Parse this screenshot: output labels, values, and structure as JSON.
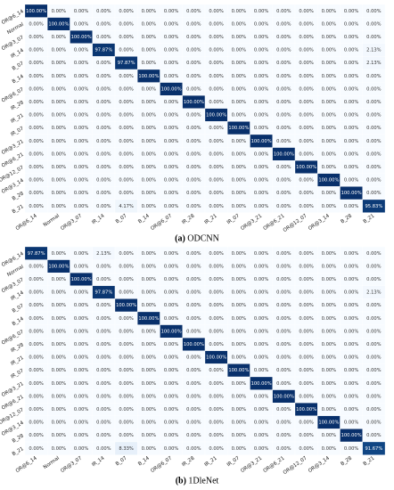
{
  "chart_data": [
    {
      "type": "heatmap",
      "caption_label": "(a)",
      "caption": "ODCNN",
      "x": [
        "OR@6_14",
        "Normal",
        "OR@3_07",
        "IR_14",
        "B_07",
        "B_14",
        "OR@6_07",
        "IR_28",
        "IR_21",
        "IR_07",
        "OR@3_21",
        "OR@6_21",
        "OR@12_07",
        "OR@3_14",
        "B_28",
        "B_21"
      ],
      "y": [
        "OR@6_14",
        "Normal",
        "OR@3_07",
        "IR_14",
        "B_07",
        "B_14",
        "OR@6_07",
        "IR_28",
        "IR_21",
        "IR_07",
        "OR@3_21",
        "OR@6_21",
        "OR@12_07",
        "OR@3_14",
        "B_28",
        "B_21"
      ],
      "colormap": [
        "#f7fbff",
        "#c6dbef",
        "#6baed6",
        "#2171b5",
        "#08306b"
      ],
      "vlim": [
        0,
        100
      ],
      "values": [
        [
          100,
          0,
          0,
          0,
          0,
          0,
          0,
          0,
          0,
          0,
          0,
          0,
          0,
          0,
          0,
          0
        ],
        [
          0,
          100,
          0,
          0,
          0,
          0,
          0,
          0,
          0,
          0,
          0,
          0,
          0,
          0,
          0,
          0
        ],
        [
          0,
          0,
          100,
          0,
          0,
          0,
          0,
          0,
          0,
          0,
          0,
          0,
          0,
          0,
          0,
          0
        ],
        [
          0,
          0,
          0,
          97.87,
          0,
          0,
          0,
          0,
          0,
          0,
          0,
          0,
          0,
          0,
          0,
          2.13
        ],
        [
          0,
          0,
          0,
          0,
          97.87,
          0,
          0,
          0,
          0,
          0,
          0,
          0,
          0,
          0,
          0,
          2.13
        ],
        [
          0,
          0,
          0,
          0,
          0,
          100,
          0,
          0,
          0,
          0,
          0,
          0,
          0,
          0,
          0,
          0
        ],
        [
          0,
          0,
          0,
          0,
          0,
          0,
          100,
          0,
          0,
          0,
          0,
          0,
          0,
          0,
          0,
          0
        ],
        [
          0,
          0,
          0,
          0,
          0,
          0,
          0,
          100,
          0,
          0,
          0,
          0,
          0,
          0,
          0,
          0
        ],
        [
          0,
          0,
          0,
          0,
          0,
          0,
          0,
          0,
          100,
          0,
          0,
          0,
          0,
          0,
          0,
          0
        ],
        [
          0,
          0,
          0,
          0,
          0,
          0,
          0,
          0,
          0,
          100,
          0,
          0,
          0,
          0,
          0,
          0
        ],
        [
          0,
          0,
          0,
          0,
          0,
          0,
          0,
          0,
          0,
          0,
          100,
          0,
          0,
          0,
          0,
          0
        ],
        [
          0,
          0,
          0,
          0,
          0,
          0,
          0,
          0,
          0,
          0,
          0,
          100,
          0,
          0,
          0,
          0
        ],
        [
          0,
          0,
          0,
          0,
          0,
          0,
          0,
          0,
          0,
          0,
          0,
          0,
          100,
          0,
          0,
          0
        ],
        [
          0,
          0,
          0,
          0,
          0,
          0,
          0,
          0,
          0,
          0,
          0,
          0,
          0,
          100,
          0,
          0
        ],
        [
          0,
          0,
          0,
          0,
          0,
          0,
          0,
          0,
          0,
          0,
          0,
          0,
          0,
          0,
          100,
          0
        ],
        [
          0,
          0,
          0,
          0,
          4.17,
          0,
          0,
          0,
          0,
          0,
          0,
          0,
          0,
          0,
          0,
          95.83
        ]
      ],
      "value_labels": [
        [
          "100.00%",
          "0.00%",
          "0.00%",
          "0.00%",
          "0.00%",
          "0.00%",
          "0.00%",
          "0.00%",
          "0.00%",
          "0.00%",
          "0.00%",
          "0.00%",
          "0.00%",
          "0.00%",
          "0.00%",
          "0.00%"
        ],
        [
          "0.00%",
          "100.00%",
          "0.00%",
          "0.00%",
          "0.00%",
          "0.00%",
          "0.00%",
          "0.00%",
          "0.00%",
          "0.00%",
          "0.00%",
          "0.00%",
          "0.00%",
          "0.00%",
          "0.00%",
          "0.00%"
        ],
        [
          "0.00%",
          "0.00%",
          "100.00%",
          "0.00%",
          "0.00%",
          "0.00%",
          "0.00%",
          "0.00%",
          "0.00%",
          "0.00%",
          "0.00%",
          "0.00%",
          "0.00%",
          "0.00%",
          "0.00%",
          "0.00%"
        ],
        [
          "0.00%",
          "0.00%",
          "0.00%",
          "97.87%",
          "0.00%",
          "0.00%",
          "0.00%",
          "0.00%",
          "0.00%",
          "0.00%",
          "0.00%",
          "0.00%",
          "0.00%",
          "0.00%",
          "0.00%",
          "2.13%"
        ],
        [
          "0.00%",
          "0.00%",
          "0.00%",
          "0.00%",
          "97.87%",
          "0.00%",
          "0.00%",
          "0.00%",
          "0.00%",
          "0.00%",
          "0.00%",
          "0.00%",
          "0.00%",
          "0.00%",
          "0.00%",
          "2.13%"
        ],
        [
          "0.00%",
          "0.00%",
          "0.00%",
          "0.00%",
          "0.00%",
          "100.00%",
          "0.00%",
          "0.00%",
          "0.00%",
          "0.00%",
          "0.00%",
          "0.00%",
          "0.00%",
          "0.00%",
          "0.00%",
          "0.00%"
        ],
        [
          "0.00%",
          "0.00%",
          "0.00%",
          "0.00%",
          "0.00%",
          "0.00%",
          "100.00%",
          "0.00%",
          "0.00%",
          "0.00%",
          "0.00%",
          "0.00%",
          "0.00%",
          "0.00%",
          "0.00%",
          "0.00%"
        ],
        [
          "0.00%",
          "0.00%",
          "0.00%",
          "0.00%",
          "0.00%",
          "0.00%",
          "0.00%",
          "100.00%",
          "0.00%",
          "0.00%",
          "0.00%",
          "0.00%",
          "0.00%",
          "0.00%",
          "0.00%",
          "0.00%"
        ],
        [
          "0.00%",
          "0.00%",
          "0.00%",
          "0.00%",
          "0.00%",
          "0.00%",
          "0.00%",
          "0.00%",
          "100.00%",
          "0.00%",
          "0.00%",
          "0.00%",
          "0.00%",
          "0.00%",
          "0.00%",
          "0.00%"
        ],
        [
          "0.00%",
          "0.00%",
          "0.00%",
          "0.00%",
          "0.00%",
          "0.00%",
          "0.00%",
          "0.00%",
          "0.00%",
          "100.00%",
          "0.00%",
          "0.00%",
          "0.00%",
          "0.00%",
          "0.00%",
          "0.00%"
        ],
        [
          "0.00%",
          "0.00%",
          "0.00%",
          "0.00%",
          "0.00%",
          "0.00%",
          "0.00%",
          "0.00%",
          "0.00%",
          "0.00%",
          "100.00%",
          "0.00%",
          "0.00%",
          "0.00%",
          "0.00%",
          "0.00%"
        ],
        [
          "0.00%",
          "0.00%",
          "0.00%",
          "0.00%",
          "0.00%",
          "0.00%",
          "0.00%",
          "0.00%",
          "0.00%",
          "0.00%",
          "0.00%",
          "100.00%",
          "0.00%",
          "0.00%",
          "0.00%",
          "0.00%"
        ],
        [
          "0.00%",
          "0.00%",
          "0.00%",
          "0.00%",
          "0.00%",
          "0.00%",
          "0.00%",
          "0.00%",
          "0.00%",
          "0.00%",
          "0.00%",
          "0.00%",
          "100.00%",
          "0.00%",
          "0.00%",
          "0.00%"
        ],
        [
          "0.00%",
          "0.00%",
          "0.00%",
          "0.00%",
          "0.00%",
          "0.00%",
          "0.00%",
          "0.00%",
          "0.00%",
          "0.00%",
          "0.00%",
          "0.00%",
          "0.00%",
          "100.00%",
          "0.00%",
          "0.00%"
        ],
        [
          "0.00%",
          "0.00%",
          "0.00%",
          "0.00%",
          "0.00%",
          "0.00%",
          "0.00%",
          "0.00%",
          "0.00%",
          "0.00%",
          "0.00%",
          "0.00%",
          "0.00%",
          "0.00%",
          "100.00%",
          "0.00%"
        ],
        [
          "0.00%",
          "0.00%",
          "0.00%",
          "0.00%",
          "4.17%",
          "0.00%",
          "0.00%",
          "0.00%",
          "0.00%",
          "0.00%",
          "0.00%",
          "0.00%",
          "0.00%",
          "0.00%",
          "0.00%",
          "95.83%"
        ]
      ]
    },
    {
      "type": "heatmap",
      "caption_label": "(b)",
      "caption": "1DleNet",
      "x": [
        "OR@6_14",
        "Normal",
        "OR@3_07",
        "IR_14",
        "B_07",
        "B_14",
        "OR@6_07",
        "IR_28",
        "IR_21",
        "IR_07",
        "OR@3_21",
        "OR@6_21",
        "OR@12_07",
        "OR@3_14",
        "B_28",
        "B_21"
      ],
      "y": [
        "OR@6_14",
        "Normal",
        "OR@3_07",
        "IR_14",
        "B_07",
        "B_14",
        "OR@6_07",
        "IR_28",
        "IR_21",
        "IR_07",
        "OR@3_21",
        "OR@6_21",
        "OR@12_07",
        "OR@3_14",
        "B_28",
        "B_21"
      ],
      "colormap": [
        "#f7fbff",
        "#c6dbef",
        "#6baed6",
        "#2171b5",
        "#08306b"
      ],
      "vlim": [
        0,
        100
      ],
      "values": [
        [
          97.87,
          0,
          0,
          2.13,
          0,
          0,
          0,
          0,
          0,
          0,
          0,
          0,
          0,
          0,
          0,
          0
        ],
        [
          0,
          100,
          0,
          0,
          0,
          0,
          0,
          0,
          0,
          0,
          0,
          0,
          0,
          0,
          0,
          0
        ],
        [
          0,
          0,
          100,
          0,
          0,
          0,
          0,
          0,
          0,
          0,
          0,
          0,
          0,
          0,
          0,
          0
        ],
        [
          0,
          0,
          0,
          97.87,
          0,
          0,
          0,
          0,
          0,
          0,
          0,
          0,
          0,
          0,
          0,
          2.13
        ],
        [
          0,
          0,
          0,
          0,
          100,
          0,
          0,
          0,
          0,
          0,
          0,
          0,
          0,
          0,
          0,
          0
        ],
        [
          0,
          0,
          0,
          0,
          0,
          100,
          0,
          0,
          0,
          0,
          0,
          0,
          0,
          0,
          0,
          0
        ],
        [
          0,
          0,
          0,
          0,
          0,
          0,
          100,
          0,
          0,
          0,
          0,
          0,
          0,
          0,
          0,
          0
        ],
        [
          0,
          0,
          0,
          0,
          0,
          0,
          0,
          100,
          0,
          0,
          0,
          0,
          0,
          0,
          0,
          0
        ],
        [
          0,
          0,
          0,
          0,
          0,
          0,
          0,
          0,
          100,
          0,
          0,
          0,
          0,
          0,
          0,
          0
        ],
        [
          0,
          0,
          0,
          0,
          0,
          0,
          0,
          0,
          0,
          100,
          0,
          0,
          0,
          0,
          0,
          0
        ],
        [
          0,
          0,
          0,
          0,
          0,
          0,
          0,
          0,
          0,
          0,
          100,
          0,
          0,
          0,
          0,
          0
        ],
        [
          0,
          0,
          0,
          0,
          0,
          0,
          0,
          0,
          0,
          0,
          0,
          100,
          0,
          0,
          0,
          0
        ],
        [
          0,
          0,
          0,
          0,
          0,
          0,
          0,
          0,
          0,
          0,
          0,
          0,
          100,
          0,
          0,
          0
        ],
        [
          0,
          0,
          0,
          0,
          0,
          0,
          0,
          0,
          0,
          0,
          0,
          0,
          0,
          100,
          0,
          0
        ],
        [
          0,
          0,
          0,
          0,
          0,
          0,
          0,
          0,
          0,
          0,
          0,
          0,
          0,
          0,
          100,
          0
        ],
        [
          0,
          0,
          0,
          0,
          8.33,
          0,
          0,
          0,
          0,
          0,
          0,
          0,
          0,
          0,
          0,
          91.67
        ]
      ],
      "value_labels": [
        [
          "97.87%",
          "0.00%",
          "0.00%",
          "2.13%",
          "0.00%",
          "0.00%",
          "0.00%",
          "0.00%",
          "0.00%",
          "0.00%",
          "0.00%",
          "0.00%",
          "0.00%",
          "0.00%",
          "0.00%",
          "0.00%"
        ],
        [
          "0.00%",
          "100.00%",
          "0.00%",
          "0.00%",
          "0.00%",
          "0.00%",
          "0.00%",
          "0.00%",
          "0.00%",
          "0.00%",
          "0.00%",
          "0.00%",
          "0.00%",
          "0.00%",
          "0.00%",
          "0.00%"
        ],
        [
          "0.00%",
          "0.00%",
          "100.00%",
          "0.00%",
          "0.00%",
          "0.00%",
          "0.00%",
          "0.00%",
          "0.00%",
          "0.00%",
          "0.00%",
          "0.00%",
          "0.00%",
          "0.00%",
          "0.00%",
          "0.00%"
        ],
        [
          "0.00%",
          "0.00%",
          "0.00%",
          "97.87%",
          "0.00%",
          "0.00%",
          "0.00%",
          "0.00%",
          "0.00%",
          "0.00%",
          "0.00%",
          "0.00%",
          "0.00%",
          "0.00%",
          "0.00%",
          "2.13%"
        ],
        [
          "0.00%",
          "0.00%",
          "0.00%",
          "0.00%",
          "100.00%",
          "0.00%",
          "0.00%",
          "0.00%",
          "0.00%",
          "0.00%",
          "0.00%",
          "0.00%",
          "0.00%",
          "0.00%",
          "0.00%",
          "0.00%"
        ],
        [
          "0.00%",
          "0.00%",
          "0.00%",
          "0.00%",
          "0.00%",
          "100.00%",
          "0.00%",
          "0.00%",
          "0.00%",
          "0.00%",
          "0.00%",
          "0.00%",
          "0.00%",
          "0.00%",
          "0.00%",
          "0.00%"
        ],
        [
          "0.00%",
          "0.00%",
          "0.00%",
          "0.00%",
          "0.00%",
          "0.00%",
          "100.00%",
          "0.00%",
          "0.00%",
          "0.00%",
          "0.00%",
          "0.00%",
          "0.00%",
          "0.00%",
          "0.00%",
          "0.00%"
        ],
        [
          "0.00%",
          "0.00%",
          "0.00%",
          "0.00%",
          "0.00%",
          "0.00%",
          "0.00%",
          "100.00%",
          "0.00%",
          "0.00%",
          "0.00%",
          "0.00%",
          "0.00%",
          "0.00%",
          "0.00%",
          "0.00%"
        ],
        [
          "0.00%",
          "0.00%",
          "0.00%",
          "0.00%",
          "0.00%",
          "0.00%",
          "0.00%",
          "0.00%",
          "100.00%",
          "0.00%",
          "0.00%",
          "0.00%",
          "0.00%",
          "0.00%",
          "0.00%",
          "0.00%"
        ],
        [
          "0.00%",
          "0.00%",
          "0.00%",
          "0.00%",
          "0.00%",
          "0.00%",
          "0.00%",
          "0.00%",
          "0.00%",
          "100.00%",
          "0.00%",
          "0.00%",
          "0.00%",
          "0.00%",
          "0.00%",
          "0.00%"
        ],
        [
          "0.00%",
          "0.00%",
          "0.00%",
          "0.00%",
          "0.00%",
          "0.00%",
          "0.00%",
          "0.00%",
          "0.00%",
          "0.00%",
          "100.00%",
          "0.00%",
          "0.00%",
          "0.00%",
          "0.00%",
          "0.00%"
        ],
        [
          "0.00%",
          "0.00%",
          "0.00%",
          "0.00%",
          "0.00%",
          "0.00%",
          "0.00%",
          "0.00%",
          "0.00%",
          "0.00%",
          "0.00%",
          "100.00%",
          "0.00%",
          "0.00%",
          "0.00%",
          "0.00%"
        ],
        [
          "0.00%",
          "0.00%",
          "0.00%",
          "0.00%",
          "0.00%",
          "0.00%",
          "0.00%",
          "0.00%",
          "0.00%",
          "0.00%",
          "0.00%",
          "0.00%",
          "100.00%",
          "0.00%",
          "0.00%",
          "0.00%"
        ],
        [
          "0.00%",
          "0.00%",
          "0.00%",
          "0.00%",
          "0.00%",
          "0.00%",
          "0.00%",
          "0.00%",
          "0.00%",
          "0.00%",
          "0.00%",
          "0.00%",
          "0.00%",
          "100.00%",
          "0.00%",
          "0.00%"
        ],
        [
          "0.00%",
          "0.00%",
          "0.00%",
          "0.00%",
          "0.00%",
          "0.00%",
          "0.00%",
          "0.00%",
          "0.00%",
          "0.00%",
          "0.00%",
          "0.00%",
          "0.00%",
          "0.00%",
          "100.00%",
          "0.00%"
        ],
        [
          "0.00%",
          "0.00%",
          "0.00%",
          "0.00%",
          "8.33%",
          "0.00%",
          "0.00%",
          "0.00%",
          "0.00%",
          "0.00%",
          "0.00%",
          "0.00%",
          "0.00%",
          "0.00%",
          "0.00%",
          "91.67%"
        ]
      ]
    }
  ]
}
